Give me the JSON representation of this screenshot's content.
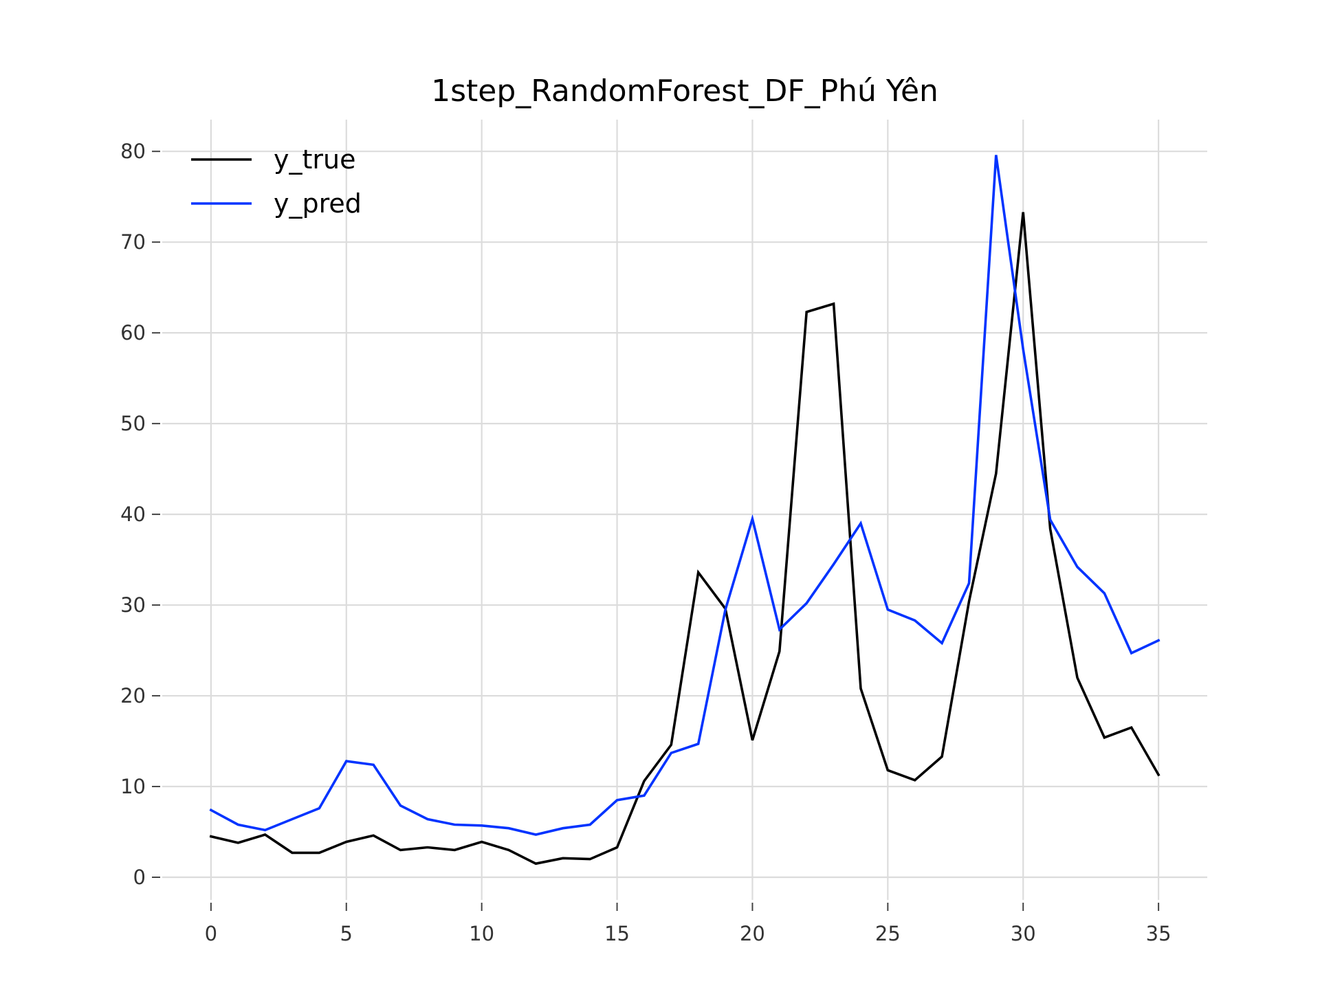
{
  "chart_data": {
    "type": "line",
    "title": "1step_RandomForest_DF_Phú Yên",
    "xlabel": "",
    "ylabel": "",
    "xlim": [
      -1.8,
      36.8
    ],
    "ylim": [
      -2.5,
      83.5
    ],
    "xticks": [
      0,
      5,
      10,
      15,
      20,
      25,
      30,
      35
    ],
    "yticks": [
      0,
      10,
      20,
      30,
      40,
      50,
      60,
      70,
      80
    ],
    "grid": true,
    "legend_position": "top-left",
    "x": [
      0,
      1,
      2,
      3,
      4,
      5,
      6,
      7,
      8,
      9,
      10,
      11,
      12,
      13,
      14,
      15,
      16,
      17,
      18,
      19,
      20,
      21,
      22,
      23,
      24,
      25,
      26,
      27,
      28,
      29,
      30,
      31,
      32,
      33,
      34,
      35
    ],
    "series": [
      {
        "name": "y_true",
        "color": "#000000",
        "values": [
          4.5,
          3.8,
          4.7,
          2.7,
          2.7,
          3.9,
          4.6,
          3.0,
          3.3,
          3.0,
          3.9,
          3.0,
          1.5,
          2.1,
          2.0,
          3.3,
          10.6,
          14.6,
          33.6,
          29.6,
          15.1,
          24.9,
          62.3,
          63.2,
          20.8,
          11.8,
          10.7,
          13.3,
          30.4,
          44.5,
          73.3,
          38.4,
          22.0,
          15.4,
          16.5,
          11.3
        ]
      },
      {
        "name": "y_pred",
        "color": "#0033ff",
        "values": [
          7.4,
          5.8,
          5.2,
          6.4,
          7.6,
          12.8,
          12.4,
          7.9,
          6.4,
          5.8,
          5.7,
          5.4,
          4.7,
          5.4,
          5.8,
          8.5,
          9.0,
          13.7,
          14.7,
          29.5,
          39.5,
          27.3,
          30.2,
          34.5,
          39.0,
          29.5,
          28.3,
          25.8,
          32.4,
          79.6,
          58.2,
          39.4,
          34.2,
          31.3,
          24.7,
          26.1
        ]
      }
    ]
  }
}
